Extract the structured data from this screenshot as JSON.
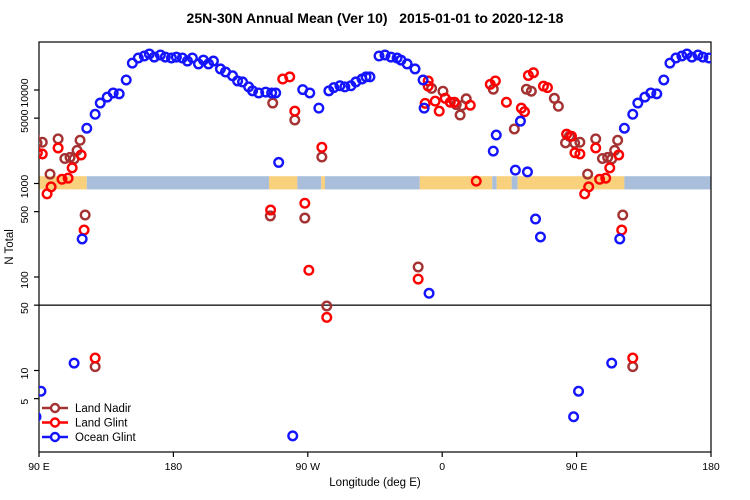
{
  "chart_data": {
    "type": "scatter",
    "title": "25N-30N Annual Mean (Ver 10)   2015-01-01 to 2020-12-18",
    "xlabel": "Longitude (deg E)",
    "ylabel": "N Total",
    "x_axis": {
      "range": [
        90,
        540
      ],
      "note": "longitude wraps eastward: 90E -> 180 -> 90W -> 0 -> 90E -> 180; data for 90E-180 is drawn at both ends",
      "ticks": [
        {
          "lon": 90,
          "label": "90 E"
        },
        {
          "lon": 180,
          "label": "180"
        },
        {
          "lon": 270,
          "label": "90 W"
        },
        {
          "lon": 360,
          "label": "0"
        },
        {
          "lon": 450,
          "label": "90 E"
        },
        {
          "lon": 540,
          "label": "180"
        }
      ]
    },
    "y_axis": {
      "scale": "log",
      "range": [
        1.34,
        32600
      ],
      "ticks": [
        5,
        10,
        50,
        100,
        500,
        1000,
        5000,
        10000
      ]
    },
    "reference_line": {
      "value": 50,
      "color": "#3c3c3c"
    },
    "land_ocean_strip": {
      "center_value": 1000,
      "land_color": "#F9D07C",
      "ocean_color": "#A9BEDB",
      "segments": [
        {
          "from": 90,
          "to": 122,
          "type": "land"
        },
        {
          "from": 122,
          "to": 244,
          "type": "ocean"
        },
        {
          "from": 244,
          "to": 263,
          "type": "land"
        },
        {
          "from": 263,
          "to": 279,
          "type": "ocean"
        },
        {
          "from": 279,
          "to": 281.5,
          "type": "land"
        },
        {
          "from": 281.5,
          "to": 345,
          "type": "ocean"
        },
        {
          "from": 345,
          "to": 393.5,
          "type": "land"
        },
        {
          "from": 393.5,
          "to": 396.5,
          "type": "ocean"
        },
        {
          "from": 396.5,
          "to": 406.5,
          "type": "land"
        },
        {
          "from": 406.5,
          "to": 410.5,
          "type": "ocean"
        },
        {
          "from": 410.5,
          "to": 482,
          "type": "land"
        },
        {
          "from": 482,
          "to": 540,
          "type": "ocean"
        }
      ]
    },
    "wrap_rules": {
      "duplicate_lon_90_to_181_offset": 360,
      "duplicate_lon_over_445_offset": -360
    },
    "series": [
      {
        "name": "Land Nadir",
        "color": "#A53232",
        "points": [
          [
            92.2,
            2760
          ],
          [
            97.4,
            1260
          ],
          [
            102.8,
            3000
          ],
          [
            107.3,
            1850
          ],
          [
            110.8,
            1900
          ],
          [
            113.5,
            1830
          ],
          [
            115.5,
            2260
          ],
          [
            117.5,
            2900
          ],
          [
            120.9,
            460
          ],
          [
            127.6,
            11
          ],
          [
            244.9,
            450
          ],
          [
            246.5,
            7250
          ],
          [
            261.3,
            4780
          ],
          [
            268,
            427
          ],
          [
            279.4,
            1920
          ],
          [
            282.7,
            49
          ],
          [
            343.9,
            128
          ],
          [
            352.9,
            10400
          ],
          [
            360.5,
            9700
          ],
          [
            369.4,
            6980
          ],
          [
            372,
            5400
          ],
          [
            373.2,
            6800
          ],
          [
            376.1,
            8050
          ],
          [
            394.2,
            10200
          ],
          [
            408.3,
            3830
          ],
          [
            416.4,
            10200
          ],
          [
            419.7,
            9700
          ],
          [
            435.1,
            8150
          ],
          [
            437.8,
            6700
          ],
          [
            442.6,
            2720
          ],
          [
            445.2,
            3200
          ],
          [
            448.7,
            2700
          ]
        ]
      },
      {
        "name": "Land Glint",
        "color": "#FF0000",
        "points": [
          [
            92.2,
            2070
          ],
          [
            95.4,
            775
          ],
          [
            98.1,
            920
          ],
          [
            102.8,
            2400
          ],
          [
            105.4,
            1110
          ],
          [
            109.5,
            1140
          ],
          [
            112.2,
            1470
          ],
          [
            118.2,
            2020
          ],
          [
            120.2,
            318
          ],
          [
            127.6,
            13.6
          ],
          [
            245.1,
            520
          ],
          [
            253.2,
            13100
          ],
          [
            257.9,
            13800
          ],
          [
            261.3,
            5940
          ],
          [
            268,
            615
          ],
          [
            270.7,
            118
          ],
          [
            279.4,
            2440
          ],
          [
            282.7,
            37
          ],
          [
            343.9,
            95
          ],
          [
            348.6,
            7200
          ],
          [
            350.6,
            12500
          ],
          [
            350.6,
            11000
          ],
          [
            355.3,
            7600
          ],
          [
            358,
            5940
          ],
          [
            362,
            8150
          ],
          [
            365.4,
            7400
          ],
          [
            368.2,
            7400
          ],
          [
            378.8,
            6870
          ],
          [
            382.8,
            1060
          ],
          [
            392.2,
            11500
          ],
          [
            395.6,
            12500
          ],
          [
            403,
            7400
          ],
          [
            413,
            6400
          ],
          [
            415.1,
            5850
          ],
          [
            417.7,
            14300
          ],
          [
            421.1,
            15300
          ],
          [
            427.8,
            11000
          ],
          [
            430.5,
            10600
          ],
          [
            443.3,
            3370
          ],
          [
            446.6,
            3200
          ],
          [
            448.9,
            2130
          ]
        ]
      },
      {
        "name": "Ocean Glint",
        "color": "#1414FF",
        "points": [
          [
            91.3,
            6
          ],
          [
            113.5,
            12
          ],
          [
            118.9,
            255
          ],
          [
            122,
            3900
          ],
          [
            127.6,
            5500
          ],
          [
            131,
            7250
          ],
          [
            135.7,
            8400
          ],
          [
            139.7,
            9300
          ],
          [
            143.7,
            9100
          ],
          [
            148.4,
            12800
          ],
          [
            152.5,
            19400
          ],
          [
            156.5,
            22000
          ],
          [
            160.5,
            23100
          ],
          [
            163.9,
            24300
          ],
          [
            167.2,
            22500
          ],
          [
            171.3,
            23700
          ],
          [
            174.6,
            22500
          ],
          [
            178.7,
            22000
          ],
          [
            182,
            22500
          ],
          [
            186,
            22000
          ],
          [
            189.4,
            20400
          ],
          [
            192.7,
            22000
          ],
          [
            196.8,
            19000
          ],
          [
            200.1,
            20900
          ],
          [
            203.5,
            19000
          ],
          [
            206.8,
            20400
          ],
          [
            211.5,
            16800
          ],
          [
            214.9,
            15600
          ],
          [
            219.6,
            14200
          ],
          [
            223,
            12500
          ],
          [
            226.3,
            12200
          ],
          [
            230.4,
            10800
          ],
          [
            233,
            9800
          ],
          [
            237.1,
            9300
          ],
          [
            241.8,
            9500
          ],
          [
            245.8,
            9300
          ],
          [
            248.5,
            9300
          ],
          [
            250.5,
            1680
          ],
          [
            259.9,
            2
          ],
          [
            266.6,
            10100
          ],
          [
            271.3,
            9300
          ],
          [
            277.4,
            6400
          ],
          [
            284.1,
            9800
          ],
          [
            287.4,
            10600
          ],
          [
            291.5,
            11100
          ],
          [
            294.8,
            10800
          ],
          [
            298.9,
            11100
          ],
          [
            302.2,
            12200
          ],
          [
            306.3,
            13100
          ],
          [
            309,
            13800
          ],
          [
            311.6,
            13800
          ],
          [
            317.7,
            23100
          ],
          [
            321.7,
            23700
          ],
          [
            325.7,
            22500
          ],
          [
            329.8,
            22000
          ],
          [
            332.4,
            20900
          ],
          [
            336.5,
            19000
          ],
          [
            341.8,
            16800
          ],
          [
            347.2,
            12800
          ],
          [
            347.9,
            6400
          ],
          [
            351.2,
            67
          ],
          [
            394.2,
            2220
          ],
          [
            396.2,
            3300
          ],
          [
            409,
            1390
          ],
          [
            412.4,
            4640
          ],
          [
            417.1,
            1330
          ],
          [
            422.5,
            417
          ],
          [
            425.8,
            268
          ],
          [
            448,
            3.2
          ]
        ]
      }
    ],
    "legend": {
      "position": "bottom-left",
      "items": [
        {
          "label": "Land Nadir",
          "color": "#A53232"
        },
        {
          "label": "Land Glint",
          "color": "#FF0000"
        },
        {
          "label": "Ocean Glint",
          "color": "#1414FF"
        }
      ]
    }
  }
}
